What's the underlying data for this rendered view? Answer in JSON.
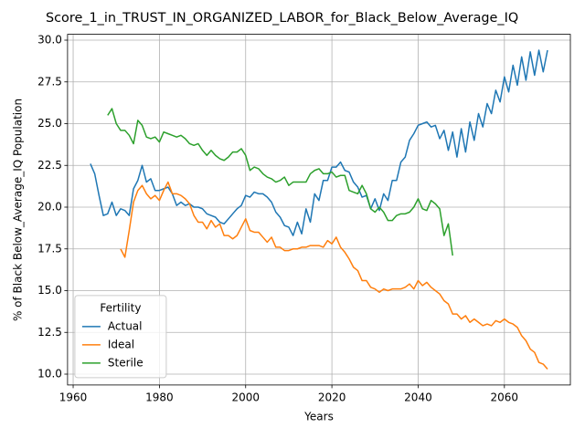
{
  "chart_data": {
    "type": "line",
    "title": "Score_1_in_TRUST_IN_ORGANIZED_LABOR_for_Black_Below_Average_IQ",
    "xlabel": "Years",
    "ylabel": "% of Black Below_Average_IQ Population",
    "legend_title": "Fertility",
    "legend_loc": "lower left",
    "grid": true,
    "x": [
      1964,
      1965,
      1966,
      1967,
      1968,
      1969,
      1970,
      1971,
      1972,
      1973,
      1974,
      1975,
      1976,
      1977,
      1978,
      1979,
      1980,
      1981,
      1982,
      1983,
      1984,
      1985,
      1986,
      1987,
      1988,
      1989,
      1990,
      1991,
      1992,
      1993,
      1994,
      1995,
      1996,
      1997,
      1998,
      1999,
      2000,
      2001,
      2002,
      2003,
      2004,
      2005,
      2006,
      2007,
      2008,
      2009,
      2010,
      2011,
      2012,
      2013,
      2014,
      2015,
      2016,
      2017,
      2018,
      2019,
      2020,
      2021,
      2022,
      2023,
      2024,
      2025,
      2026,
      2027,
      2028,
      2029,
      2030,
      2031,
      2032,
      2033,
      2034,
      2035,
      2036,
      2037,
      2038,
      2039,
      2040,
      2041,
      2042,
      2043,
      2044,
      2045,
      2046,
      2047,
      2048,
      2049,
      2050,
      2051,
      2052,
      2053,
      2054,
      2055,
      2056,
      2057,
      2058,
      2059,
      2060,
      2061,
      2062,
      2063,
      2064,
      2065,
      2066,
      2067,
      2068,
      2069,
      2070
    ],
    "series": [
      {
        "name": "Actual",
        "color": "#1f77b4",
        "values": [
          22.6,
          22.0,
          20.7,
          19.5,
          19.6,
          20.3,
          19.5,
          19.9,
          19.8,
          19.5,
          21.1,
          21.6,
          22.5,
          21.5,
          21.7,
          21.0,
          21.0,
          21.1,
          21.2,
          20.8,
          20.1,
          20.3,
          20.1,
          20.2,
          20.0,
          20.0,
          19.9,
          19.6,
          19.5,
          19.4,
          19.1,
          19.0,
          19.3,
          19.6,
          19.9,
          20.1,
          20.7,
          20.6,
          20.9,
          20.8,
          20.8,
          20.6,
          20.3,
          19.7,
          19.4,
          18.9,
          18.8,
          18.3,
          19.1,
          18.4,
          19.9,
          19.1,
          20.8,
          20.4,
          21.6,
          21.6,
          22.4,
          22.4,
          22.7,
          22.2,
          22.1,
          21.5,
          21.2,
          20.6,
          20.7,
          19.9,
          20.5,
          19.8,
          20.8,
          20.4,
          21.6,
          21.6,
          22.7,
          23.0,
          24.0,
          24.4,
          24.9,
          25.0,
          25.1,
          24.8,
          24.9,
          24.1,
          24.6,
          23.4,
          24.5,
          23.0,
          24.7,
          23.3,
          25.1,
          24.0,
          25.6,
          24.8,
          26.2,
          25.6,
          27.0,
          26.3,
          27.8,
          26.9,
          28.5,
          27.3,
          29.0,
          27.6,
          29.3,
          27.9,
          29.4,
          28.1,
          29.4
        ]
      },
      {
        "name": "Ideal",
        "color": "#ff7f0e",
        "values": [
          null,
          null,
          null,
          null,
          null,
          null,
          null,
          17.5,
          17.0,
          18.6,
          20.3,
          21.0,
          21.3,
          20.8,
          20.5,
          20.7,
          20.4,
          21.0,
          21.5,
          20.8,
          20.8,
          20.7,
          20.5,
          20.2,
          19.5,
          19.1,
          19.1,
          18.7,
          19.2,
          18.8,
          19.0,
          18.3,
          18.3,
          18.1,
          18.3,
          18.8,
          19.3,
          18.6,
          18.5,
          18.5,
          18.2,
          17.9,
          18.2,
          17.6,
          17.6,
          17.4,
          17.4,
          17.5,
          17.5,
          17.6,
          17.6,
          17.7,
          17.7,
          17.7,
          17.6,
          18.0,
          17.8,
          18.2,
          17.6,
          17.3,
          16.9,
          16.4,
          16.2,
          15.6,
          15.6,
          15.2,
          15.1,
          14.9,
          15.1,
          15.0,
          15.1,
          15.1,
          15.1,
          15.2,
          15.4,
          15.1,
          15.6,
          15.3,
          15.5,
          15.2,
          15.0,
          14.8,
          14.4,
          14.2,
          13.6,
          13.6,
          13.3,
          13.5,
          13.1,
          13.3,
          13.1,
          12.9,
          13.0,
          12.9,
          13.2,
          13.1,
          13.3,
          13.1,
          13.0,
          12.8,
          12.3,
          12.0,
          11.5,
          11.3,
          10.7,
          10.6,
          10.3
        ]
      },
      {
        "name": "Sterile",
        "color": "#2ca02c",
        "values": [
          null,
          null,
          null,
          null,
          25.5,
          25.9,
          25.0,
          24.6,
          24.6,
          24.3,
          23.8,
          25.2,
          24.9,
          24.2,
          24.1,
          24.2,
          23.9,
          24.5,
          24.4,
          24.3,
          24.2,
          24.3,
          24.1,
          23.8,
          23.7,
          23.8,
          23.4,
          23.1,
          23.4,
          23.1,
          22.9,
          22.8,
          23.0,
          23.3,
          23.3,
          23.5,
          23.1,
          22.2,
          22.4,
          22.3,
          22.0,
          21.8,
          21.7,
          21.5,
          21.6,
          21.8,
          21.3,
          21.5,
          21.5,
          21.5,
          21.5,
          22.0,
          22.2,
          22.3,
          22.0,
          22.0,
          22.1,
          21.8,
          21.9,
          21.9,
          21.0,
          20.9,
          20.8,
          21.3,
          20.8,
          19.9,
          19.7,
          20.0,
          19.7,
          19.2,
          19.2,
          19.5,
          19.6,
          19.6,
          19.7,
          20.0,
          20.5,
          19.9,
          19.8,
          20.4,
          20.2,
          19.9,
          18.3,
          19.0,
          17.1,
          null,
          null,
          null,
          null,
          null,
          null,
          null,
          null,
          null,
          null,
          null,
          null,
          null,
          null,
          null,
          null,
          null,
          null,
          null,
          null,
          null,
          null
        ]
      }
    ],
    "xlim": [
      1958.7,
      2075.3
    ],
    "ylim": [
      9.35,
      30.35
    ],
    "xticks": [
      1960,
      1980,
      2000,
      2020,
      2040,
      2060
    ],
    "yticks": [
      {
        "value": 10,
        "label": "10.0"
      },
      12.5,
      {
        "value": 15,
        "label": "15.0"
      },
      17.5,
      {
        "value": 20,
        "label": "20.0"
      },
      22.5,
      {
        "value": 25,
        "label": "25.0"
      },
      27.5,
      {
        "value": 30,
        "label": "30.0"
      }
    ]
  }
}
